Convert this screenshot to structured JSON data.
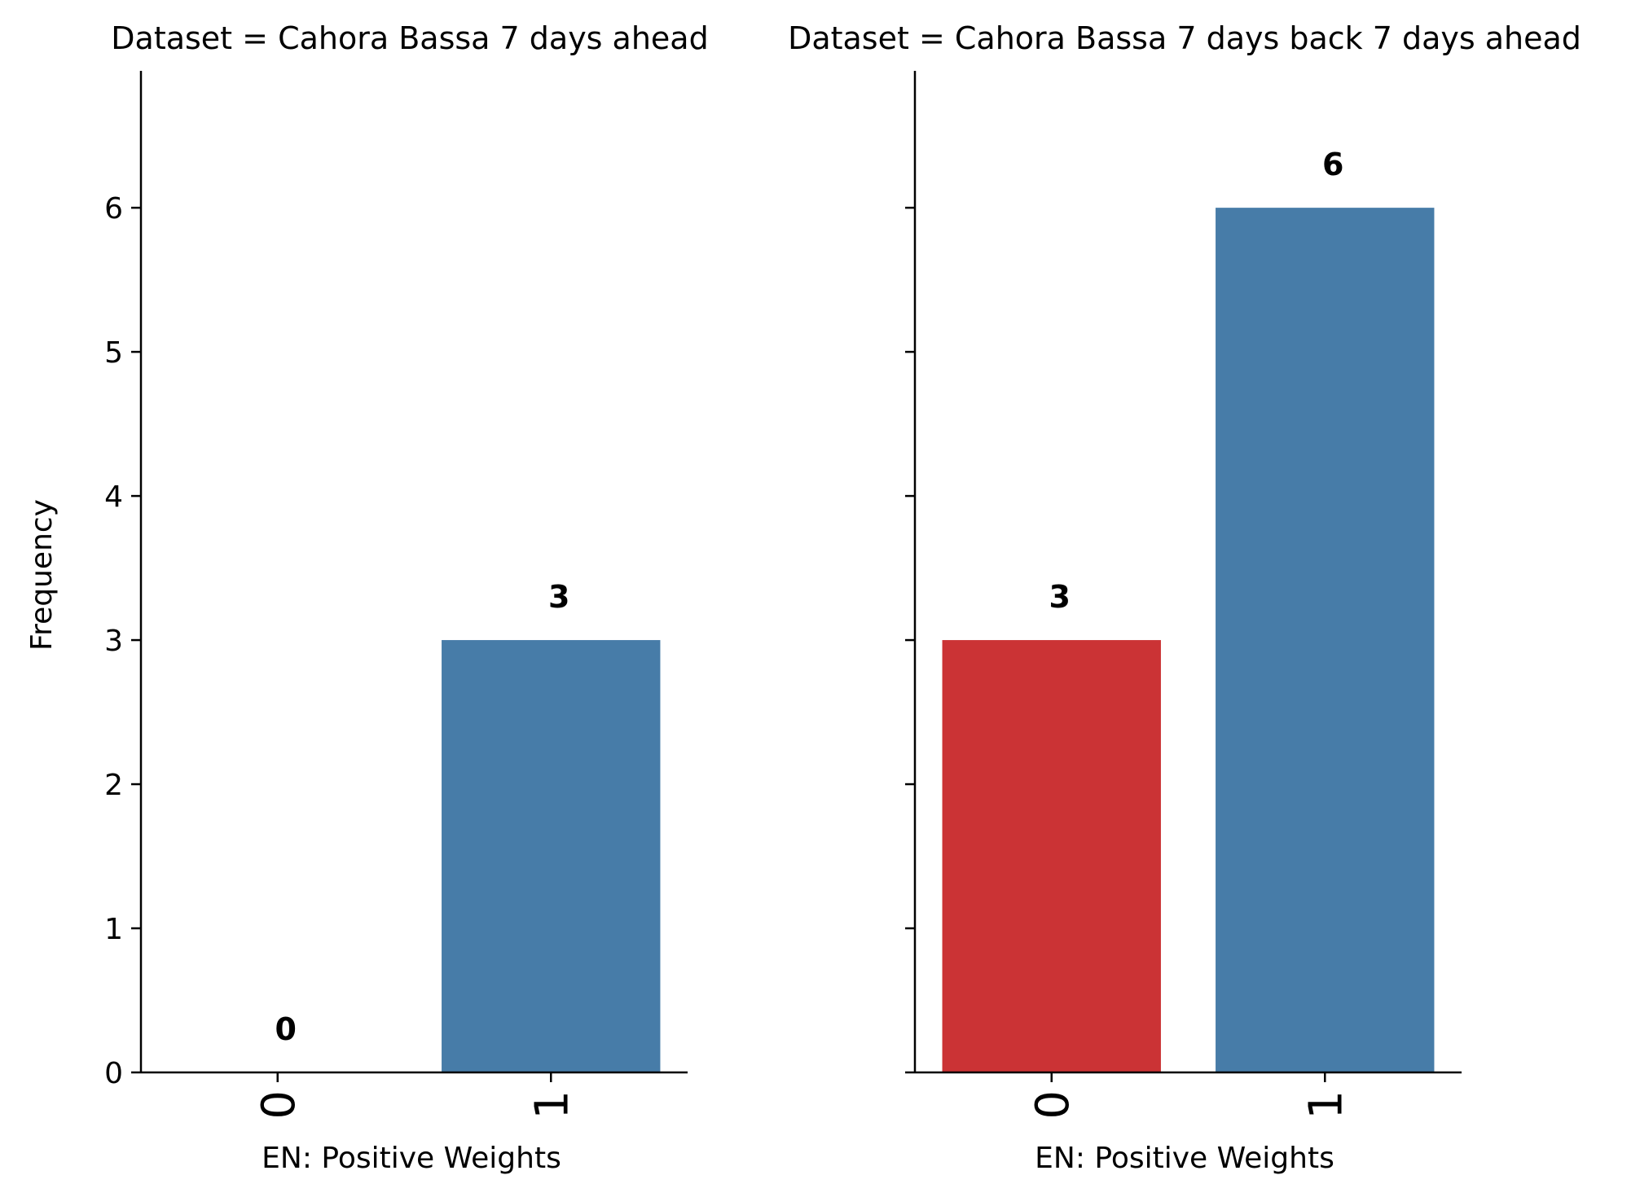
{
  "chart_data": [
    {
      "type": "bar",
      "title": "Dataset = Cahora Bassa 7 days ahead",
      "xlabel": "EN: Positive Weights",
      "ylabel": "Frequency",
      "categories": [
        "0",
        "1"
      ],
      "values": [
        0,
        3
      ],
      "colors": [
        "#cb3335",
        "#477ca8"
      ],
      "value_labels": [
        "0",
        "3"
      ],
      "yticks": [
        "0",
        "1",
        "2",
        "3",
        "4",
        "5",
        "6"
      ],
      "ylim": [
        0,
        6.95
      ]
    },
    {
      "type": "bar",
      "title": "Dataset = Cahora Bassa 7 days back 7 days ahead",
      "xlabel": "EN: Positive Weights",
      "ylabel": "",
      "categories": [
        "0",
        "1"
      ],
      "values": [
        3,
        6
      ],
      "colors": [
        "#cb3335",
        "#477ca8"
      ],
      "value_labels": [
        "3",
        "6"
      ],
      "yticks": [
        "0",
        "1",
        "2",
        "3",
        "4",
        "5",
        "6"
      ],
      "ylim": [
        0,
        6.95
      ]
    }
  ]
}
